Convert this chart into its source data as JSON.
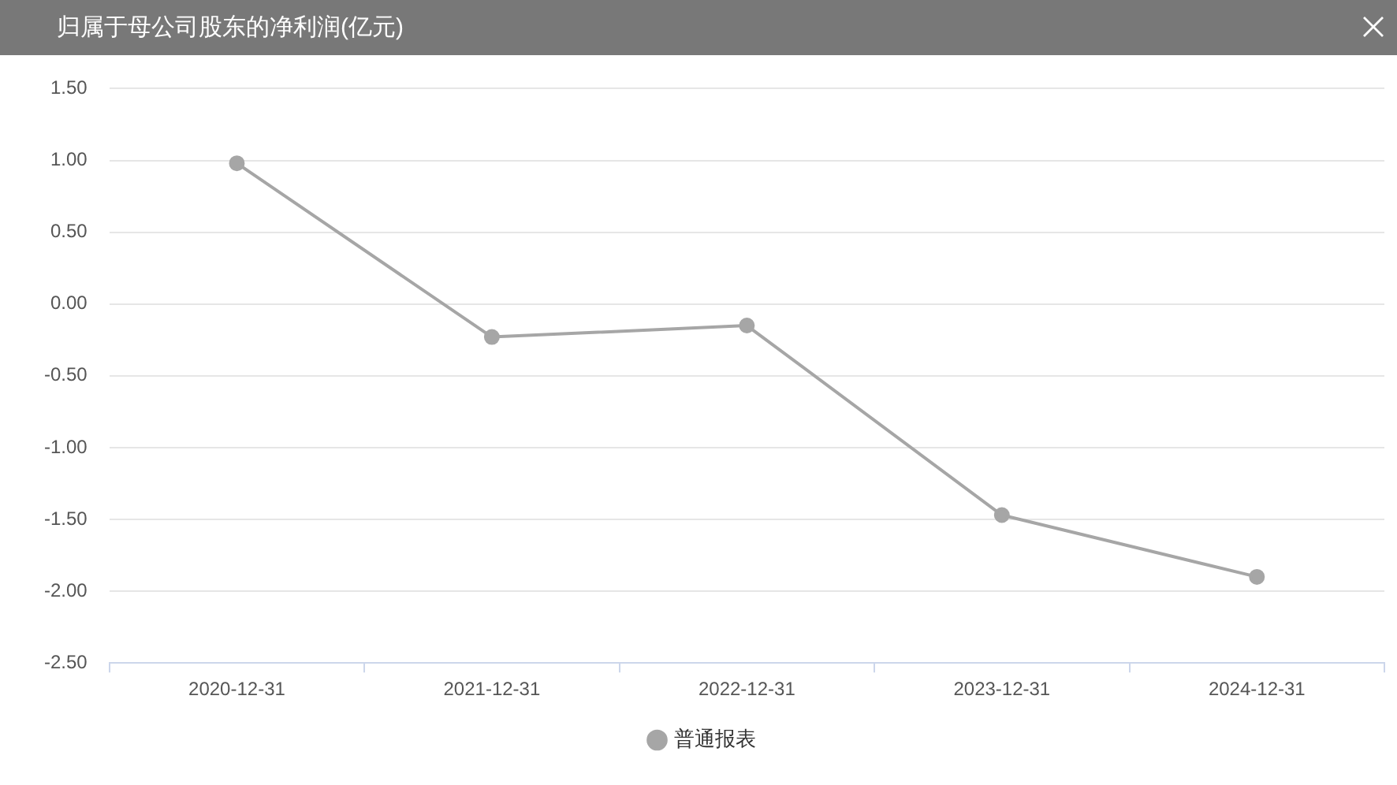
{
  "chart_data": {
    "type": "line",
    "title": "归属于母公司股东的净利润(亿元)",
    "categories": [
      "2020-12-31",
      "2021-12-31",
      "2022-12-31",
      "2023-12-31",
      "2024-12-31"
    ],
    "series": [
      {
        "name": "普通报表",
        "color": "#a6a6a6",
        "values": [
          0.98,
          -0.23,
          -0.15,
          -1.47,
          -1.9
        ]
      }
    ],
    "ylim": [
      -2.5,
      1.5
    ],
    "yticks": [
      {
        "value": -2.5,
        "label": "-2.50"
      },
      {
        "value": -2,
        "label": "-2.00"
      },
      {
        "value": -1.5,
        "label": "-1.50"
      },
      {
        "value": -1,
        "label": "-1.00"
      },
      {
        "value": -0.5,
        "label": "-0.50"
      },
      {
        "value": 0,
        "label": "0.00"
      },
      {
        "value": 0.5,
        "label": "0.50"
      },
      {
        "value": 1,
        "label": "1.00"
      },
      {
        "value": 1.5,
        "label": "1.50"
      }
    ],
    "grid": "y",
    "legend": "bottom",
    "marker": "circle",
    "line_style": "solid"
  }
}
